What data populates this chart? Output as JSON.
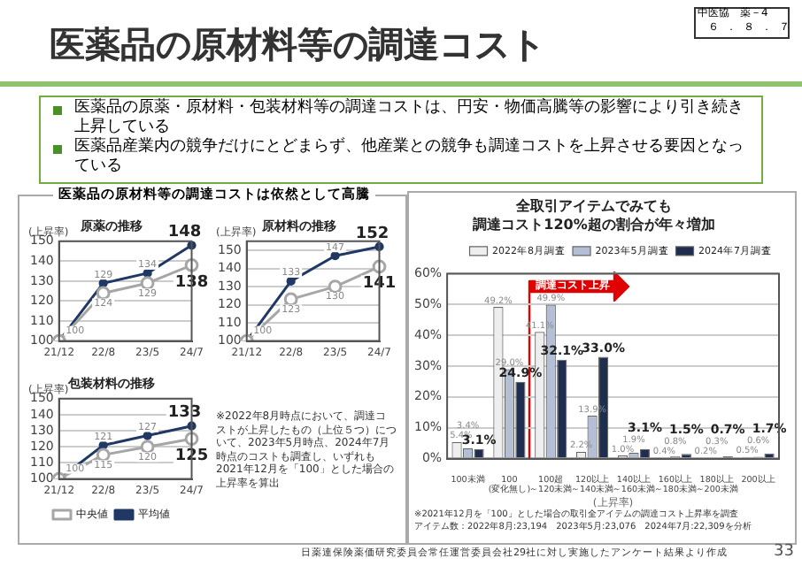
{
  "chart_data": [
    {
      "type": "other",
      "title": "医薬品の原材料等の調達コスト",
      "annotations": [
        "中医協　薬－4",
        "６．８．７",
        "医薬品の原薬・原材料・包装材料等の調達コストは、円安・物価高騰等の影響により引き続き上昇している",
        "医薬品産業内の競争だけにとどまらず、他産業との競争も調達コストを上昇させる要因となっている",
        "医薬品の原材料等の調達コストは依然として高騰",
        "※2022年8月時点において、調達コストが上昇したもの（上位５つ）について、2023年5月時点、2024年7月時点のコストも調査し、いずれも2021年12月を「100」とした場合の上昇率を算出",
        "日薬連保険薬価研究委員会常任運営委員会社29社に対し実施したアンケート結果より作成",
        "33"
      ]
    },
    {
      "type": "line",
      "title": "原薬の推移",
      "ylabel": "(上昇率)",
      "categories": [
        "21/12",
        "22/8",
        "23/5",
        "24/7"
      ],
      "ylim": [
        100,
        150
      ],
      "yticks": [
        100,
        110,
        120,
        130,
        140,
        150
      ],
      "grid": "y",
      "marker": "circle",
      "series": [
        {
          "color": "#1f3864",
          "values": [
            100,
            129,
            134,
            148
          ],
          "value_labels": [
            "100",
            "129",
            "134",
            "148"
          ]
        },
        {
          "color": "#a6a6a6",
          "values": [
            100,
            124,
            129,
            138
          ],
          "value_labels": [
            null,
            "124",
            "129",
            "138"
          ]
        }
      ]
    },
    {
      "type": "line",
      "title": "原材料の推移",
      "ylabel": "(上昇率)",
      "categories": [
        "21/12",
        "22/8",
        "23/5",
        "24/7"
      ],
      "ylim": [
        100,
        155
      ],
      "yticks": [
        100,
        110,
        120,
        130,
        140,
        150
      ],
      "grid": "y",
      "marker": "circle",
      "series": [
        {
          "color": "#1f3864",
          "values": [
            100,
            133,
            147,
            152
          ],
          "value_labels": [
            "100",
            "133",
            "147",
            "152"
          ]
        },
        {
          "color": "#a6a6a6",
          "values": [
            100,
            123,
            130,
            141
          ],
          "value_labels": [
            null,
            "123",
            "130",
            "141"
          ]
        }
      ]
    },
    {
      "type": "line",
      "title": "包装材料の推移",
      "ylabel": "(上昇率)",
      "categories": [
        "21/12",
        "22/8",
        "23/5",
        "24/7"
      ],
      "ylim": [
        100,
        150
      ],
      "yticks": [
        100,
        110,
        120,
        130,
        140,
        150
      ],
      "grid": "y",
      "marker": "circle",
      "legend": "bottom",
      "series": [
        {
          "name": "平均値",
          "color": "#1f3864",
          "values": [
            100,
            121,
            127,
            133
          ],
          "value_labels": [
            "100",
            "121",
            "127",
            "133"
          ]
        },
        {
          "name": "中央値",
          "color": "#a6a6a6",
          "values": [
            100,
            115,
            120,
            125
          ],
          "value_labels": [
            null,
            "115",
            "120",
            "125"
          ]
        }
      ]
    },
    {
      "type": "bar",
      "title": "全取引アイテムでみても",
      "subtitle": "調達コスト120%超の割合が年々増加",
      "xlabel": "(上昇率)",
      "categories": [
        "100未満",
        "100(変化無し)",
        "100超～120未満",
        "120以上～140未満",
        "140以上～160未満",
        "160以上～180未満",
        "180以上～200未満",
        "200以上"
      ],
      "ylim": [
        0,
        60
      ],
      "yticks": [
        {
          "value": 0,
          "label": "0%"
        },
        {
          "value": 10,
          "label": "10%"
        },
        {
          "value": 20,
          "label": "20%"
        },
        {
          "value": 30,
          "label": "30%"
        },
        {
          "value": 40,
          "label": "40%"
        },
        {
          "value": 50,
          "label": "50%"
        },
        {
          "value": 60,
          "label": "60%"
        }
      ],
      "grid": "y",
      "legend": "top right",
      "series": [
        {
          "name": "2022年8月調査",
          "color": "#eeeeee",
          "values": [
            5.4,
            49.2,
            41.1,
            2.2,
            1.0,
            0.4,
            0.2,
            0.5
          ],
          "value_labels": [
            "5.4%",
            "49.2%",
            "41.1%",
            "2.2%",
            "1.0%",
            "0.4%",
            "0.2%",
            "0.5%"
          ]
        },
        {
          "name": "2023年5月調査",
          "color": "#b4bfd6",
          "values": [
            3.4,
            29.0,
            49.9,
            13.9,
            1.9,
            0.8,
            0.3,
            0.6
          ],
          "value_labels": [
            "3.4%",
            "29.0%",
            "49.9%",
            "13.9%",
            "1.9%",
            "0.8%",
            "0.3%",
            "0.6%"
          ]
        },
        {
          "name": "2024年7月調査",
          "color": "#1f2d4e",
          "values": [
            3.1,
            24.9,
            32.1,
            33.0,
            3.1,
            1.5,
            0.7,
            1.7
          ],
          "value_labels": [
            "3.1%",
            "24.9%",
            "32.1%",
            "33.0%",
            "3.1%",
            "1.5%",
            "0.7%",
            "1.7%"
          ]
        }
      ],
      "annotations": [
        "調達コスト上昇",
        "※2021年12月を「100」とした場合の取引全アイテムの調達コスト上昇率を調査",
        "アイテム数：2022年8月:23,194　2023年5月:23,076　2024年7月:22,309を分析"
      ]
    }
  ]
}
